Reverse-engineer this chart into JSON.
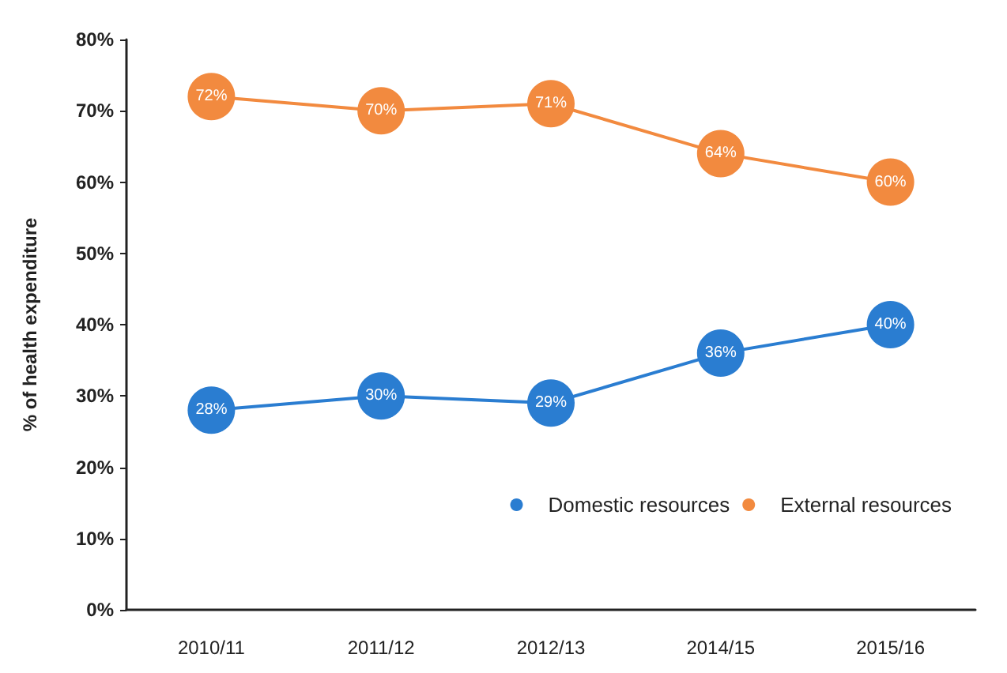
{
  "chart_data": {
    "type": "line",
    "ylabel": "% of health expenditure",
    "categories": [
      "2010/11",
      "2011/12",
      "2012/13",
      "2014/15",
      "2015/16"
    ],
    "series": [
      {
        "name": "Domestic resources",
        "color": "#2a7dd1",
        "values": [
          28,
          30,
          29,
          36,
          40
        ],
        "value_labels": [
          "28%",
          "30%",
          "29%",
          "36%",
          "40%"
        ]
      },
      {
        "name": "External resources",
        "color": "#f28a3f",
        "values": [
          72,
          70,
          71,
          64,
          60
        ],
        "value_labels": [
          "72%",
          "70%",
          "71%",
          "64%",
          "60%"
        ]
      }
    ],
    "ylim": [
      0,
      80
    ],
    "yticks": [
      {
        "value": 0,
        "label": "0%"
      },
      {
        "value": 10,
        "label": "10%"
      },
      {
        "value": 20,
        "label": "20%"
      },
      {
        "value": 30,
        "label": "30%"
      },
      {
        "value": 40,
        "label": "40%"
      },
      {
        "value": 50,
        "label": "50%"
      },
      {
        "value": 60,
        "label": "60%"
      },
      {
        "value": 70,
        "label": "70%"
      },
      {
        "value": 80,
        "label": "80%"
      }
    ],
    "grid": false,
    "legend": "bottom right",
    "marker": "circle",
    "line_style": "solid"
  }
}
